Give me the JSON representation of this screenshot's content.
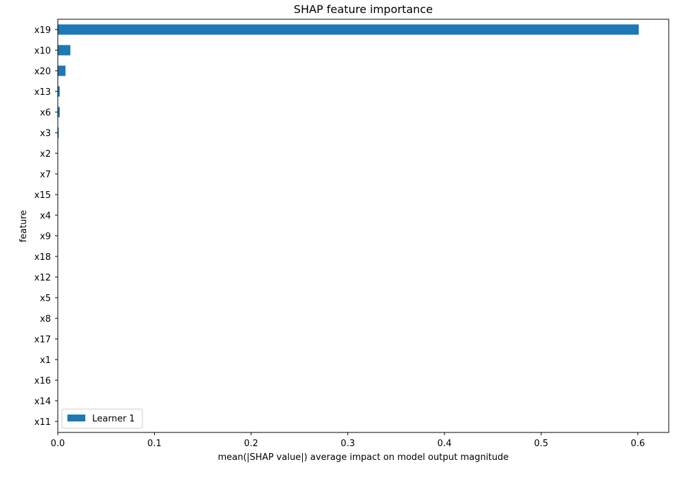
{
  "chart_data": {
    "type": "bar",
    "orientation": "horizontal",
    "title": "SHAP feature importance",
    "xlabel": "mean(|SHAP value|) average impact on model output magnitude",
    "ylabel": "feature",
    "xlim": [
      0,
      0.632
    ],
    "xticks": [
      0.0,
      0.1,
      0.2,
      0.3,
      0.4,
      0.5,
      0.6
    ],
    "xtick_labels": [
      "0.0",
      "0.1",
      "0.2",
      "0.3",
      "0.4",
      "0.5",
      "0.6"
    ],
    "grid": false,
    "legend_position": "bottom-left",
    "categories": [
      "x19",
      "x10",
      "x20",
      "x13",
      "x6",
      "x3",
      "x2",
      "x7",
      "x15",
      "x4",
      "x9",
      "x18",
      "x12",
      "x5",
      "x8",
      "x17",
      "x1",
      "x16",
      "x14",
      "x11"
    ],
    "series": [
      {
        "name": "Learner 1",
        "color": "#1f77b4",
        "values": [
          0.601,
          0.013,
          0.008,
          0.002,
          0.002,
          0.001,
          0.0,
          0.0,
          0.0,
          0.0,
          0.0,
          0.0,
          0.0,
          0.0,
          0.0,
          0.0,
          0.0,
          0.0,
          0.0,
          0.0
        ]
      }
    ]
  }
}
